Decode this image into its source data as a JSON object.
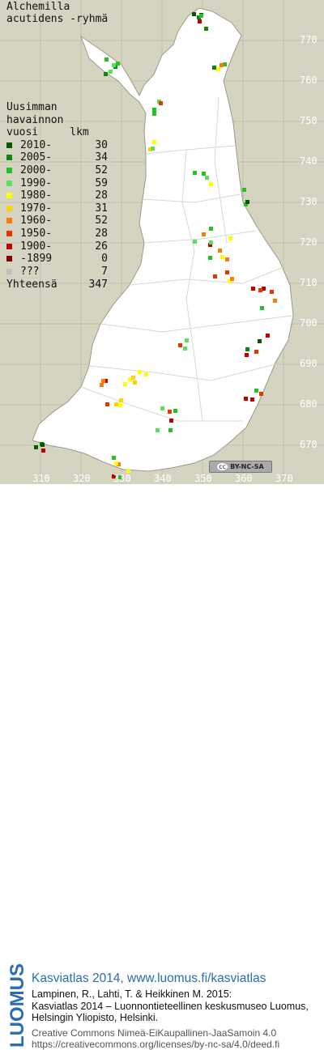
{
  "title": {
    "line1": "Alchemilla",
    "line2": "acutidens -ryhmä"
  },
  "legend": {
    "header": [
      "Uusimman",
      "havainnon",
      "vuosi"
    ],
    "count_header": "lkm",
    "items": [
      {
        "label": "2010-",
        "count": "30",
        "color": "#005a00"
      },
      {
        "label": "2005-",
        "count": "34",
        "color": "#0a8a0a"
      },
      {
        "label": "2000-",
        "count": "52",
        "color": "#22c322"
      },
      {
        "label": "1990-",
        "count": "59",
        "color": "#5ce05c"
      },
      {
        "label": "1980-",
        "count": "28",
        "color": "#ffff00"
      },
      {
        "label": "1970-",
        "count": "31",
        "color": "#ffd200"
      },
      {
        "label": "1960-",
        "count": "52",
        "color": "#ff7a00"
      },
      {
        "label": "1950-",
        "count": "28",
        "color": "#e03a00"
      },
      {
        "label": "1900-",
        "count": "26",
        "color": "#c00000"
      },
      {
        "label": "-1899",
        "count": "0",
        "color": "#800000"
      },
      {
        "label": "???",
        "count": "7",
        "color": "#c0c0c0"
      }
    ],
    "total_label": "Yhteensä",
    "total_count": "347"
  },
  "y_ticks": [
    "770",
    "760",
    "750",
    "740",
    "730",
    "720",
    "710",
    "700",
    "690",
    "680",
    "670"
  ],
  "x_ticks": [
    "310",
    "320",
    "330",
    "340",
    "350",
    "360",
    "370"
  ],
  "license_badge": "BY-NC-SA",
  "footer": {
    "brand": "LUOMUS",
    "line1": "Kasviatlas 2014, www.luomus.fi/kasviatlas",
    "line2": "Lampinen, R., Lahti, T. & Heikkinen M. 2015:",
    "line3": "Kasviatlas 2014 – Luonnontieteellinen keskusmuseo Luomus,",
    "line4": "Helsingin Yliopisto, Helsinki.",
    "line5": "Creative Commons Nimeä-EiKaupallinen-JaaSamoin 4.0",
    "line6": "https://creativecommons.org/licenses/by-nc-sa/4.0/deed.fi"
  }
}
